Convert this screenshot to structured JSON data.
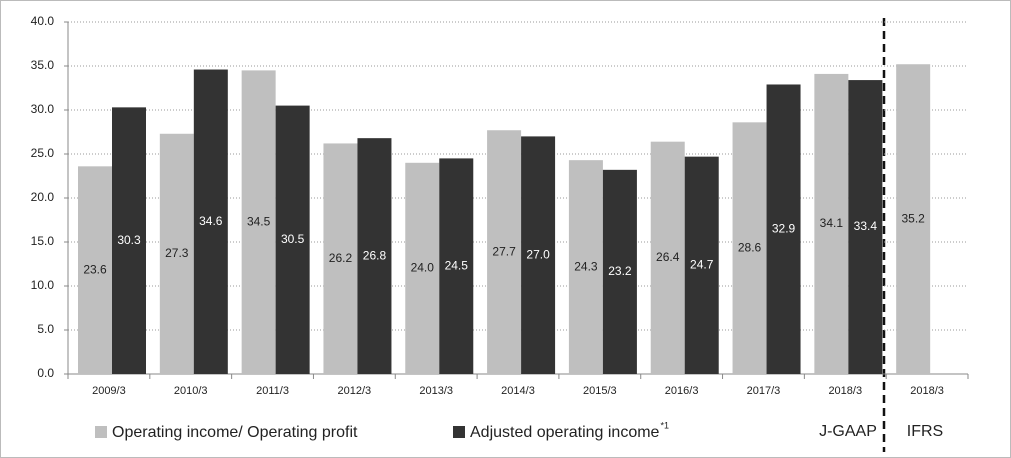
{
  "chart_data": {
    "type": "bar",
    "categories": [
      "2009/3",
      "2010/3",
      "2011/3",
      "2012/3",
      "2013/3",
      "2014/3",
      "2015/3",
      "2016/3",
      "2017/3",
      "2018/3",
      "2018/3"
    ],
    "series": [
      {
        "name": "Operating income/ Operating profit",
        "color": "#bfbfbf",
        "values": [
          23.6,
          27.3,
          34.5,
          26.2,
          24.0,
          27.7,
          24.3,
          26.4,
          28.6,
          34.1,
          35.2
        ],
        "value_labels": [
          "23.6",
          "27.3",
          "34.5",
          "26.2",
          "24.0",
          "27.7",
          "24.3",
          "26.4",
          "28.6",
          "34.1",
          "35.2"
        ]
      },
      {
        "name": "Adjusted operating income",
        "name_note": "*1",
        "color": "#333333",
        "values": [
          30.3,
          34.6,
          30.5,
          26.8,
          24.5,
          27.0,
          23.2,
          24.7,
          32.9,
          33.4,
          null
        ],
        "value_labels": [
          "30.3",
          "34.6",
          "30.5",
          "26.8",
          "24.5",
          "27.0",
          "23.2",
          "24.7",
          "32.9",
          "33.4",
          null
        ]
      }
    ],
    "ylim": [
      0,
      40
    ],
    "yticks": [
      {
        "value": 0,
        "label": "0.0"
      },
      {
        "value": 5,
        "label": "5.0"
      },
      {
        "value": 10,
        "label": "10.0"
      },
      {
        "value": 15,
        "label": "15.0"
      },
      {
        "value": 20,
        "label": "20.0"
      },
      {
        "value": 25,
        "label": "25.0"
      },
      {
        "value": 30,
        "label": "30.0"
      },
      {
        "value": 35,
        "label": "35.0"
      },
      {
        "value": 40,
        "label": "40.0"
      }
    ],
    "grid": true,
    "annotations": [
      "J-GAAP",
      "IFRS"
    ]
  }
}
